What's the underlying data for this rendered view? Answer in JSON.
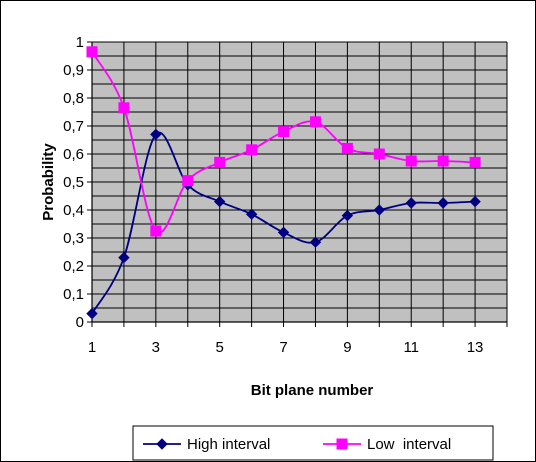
{
  "chart_data": {
    "type": "line",
    "title": "",
    "xlabel": "Bit plane number",
    "ylabel": "Probability",
    "x": [
      1,
      2,
      3,
      4,
      5,
      6,
      7,
      8,
      9,
      10,
      11,
      12,
      13
    ],
    "xlim": [
      1,
      14
    ],
    "x_tick_labels": [
      "1",
      "3",
      "5",
      "7",
      "9",
      "11",
      "13"
    ],
    "ylim": [
      0,
      1
    ],
    "y_tick_labels": [
      "0",
      "0,1",
      "0,2",
      "0,3",
      "0,4",
      "0,5",
      "0,6",
      "0,7",
      "0,8",
      "0,9",
      "1"
    ],
    "grid": true,
    "plot_background": "#c0c0c0",
    "legend_position": "bottom",
    "series": [
      {
        "name": "High interval",
        "color": "#000080",
        "marker": "diamond",
        "values": [
          0.03,
          0.23,
          0.67,
          0.49,
          0.43,
          0.385,
          0.32,
          0.285,
          0.38,
          0.4,
          0.425,
          0.425,
          0.43
        ]
      },
      {
        "name": "Low  interval",
        "color": "#ff00ff",
        "marker": "square",
        "values": [
          0.965,
          0.765,
          0.325,
          0.505,
          0.57,
          0.615,
          0.68,
          0.715,
          0.62,
          0.6,
          0.575,
          0.575,
          0.57
        ]
      }
    ]
  }
}
